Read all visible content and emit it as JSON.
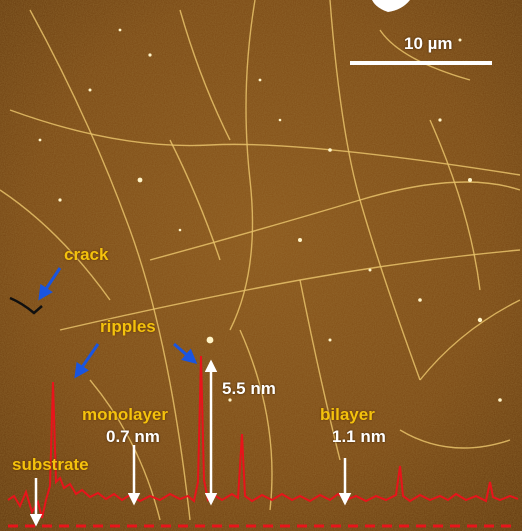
{
  "image": {
    "scale_bar_label": "10 µm",
    "annotations": {
      "crack": "crack",
      "ripples": "ripples",
      "monolayer": "monolayer",
      "monolayer_height": "0.7 nm",
      "bilayer": "bilayer",
      "bilayer_height": "1.1 nm",
      "substrate": "substrate",
      "ripple_height": "5.5 nm"
    },
    "colors": {
      "background": "#7a4712",
      "label_yellow": "#f4c20d",
      "profile_red": "#e8141b",
      "arrow_blue": "#1a55e0",
      "arrow_white": "#ffffff"
    }
  }
}
